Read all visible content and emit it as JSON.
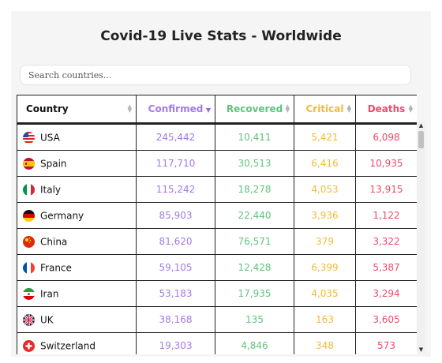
{
  "title": "Covid-19 Live Stats - Worldwide",
  "search": {
    "placeholder": "Search countries...",
    "value": ""
  },
  "table": {
    "columns": [
      "Country",
      "Confirmed",
      "Recovered",
      "Critical",
      "Deaths"
    ],
    "sorted_column": "Confirmed",
    "sort_direction": "descending",
    "colors": {
      "confirmed": "#a27ae8",
      "recovered": "#5fc47e",
      "critical": "#f3b93a",
      "deaths": "#ec4b6a"
    },
    "rows": [
      {
        "country": "USA",
        "flag": "usa-flag-icon",
        "confirmed": "245,442",
        "recovered": "10,411",
        "critical": "5,421",
        "deaths": "6,098"
      },
      {
        "country": "Spain",
        "flag": "spain-flag-icon",
        "confirmed": "117,710",
        "recovered": "30,513",
        "critical": "6,416",
        "deaths": "10,935"
      },
      {
        "country": "Italy",
        "flag": "italy-flag-icon",
        "confirmed": "115,242",
        "recovered": "18,278",
        "critical": "4,053",
        "deaths": "13,915"
      },
      {
        "country": "Germany",
        "flag": "germany-flag-icon",
        "confirmed": "85,903",
        "recovered": "22,440",
        "critical": "3,936",
        "deaths": "1,122"
      },
      {
        "country": "China",
        "flag": "china-flag-icon",
        "confirmed": "81,620",
        "recovered": "76,571",
        "critical": "379",
        "deaths": "3,322"
      },
      {
        "country": "France",
        "flag": "france-flag-icon",
        "confirmed": "59,105",
        "recovered": "12,428",
        "critical": "6,399",
        "deaths": "5,387"
      },
      {
        "country": "Iran",
        "flag": "iran-flag-icon",
        "confirmed": "53,183",
        "recovered": "17,935",
        "critical": "4,035",
        "deaths": "3,294"
      },
      {
        "country": "UK",
        "flag": "uk-flag-icon",
        "confirmed": "38,168",
        "recovered": "135",
        "critical": "163",
        "deaths": "3,605"
      },
      {
        "country": "Switzerland",
        "flag": "switzerland-flag-icon",
        "confirmed": "19,303",
        "recovered": "4,846",
        "critical": "348",
        "deaths": "573"
      }
    ]
  }
}
